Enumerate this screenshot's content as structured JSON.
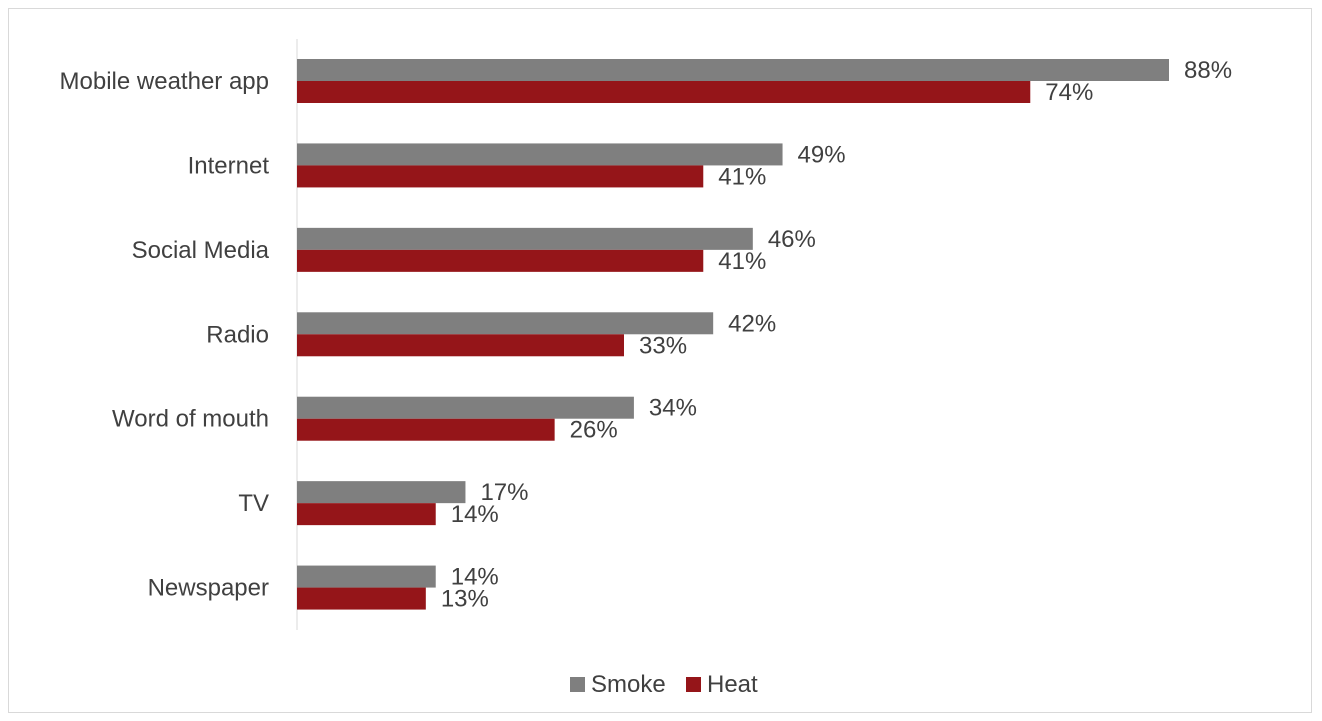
{
  "chart_data": {
    "type": "bar",
    "orientation": "horizontal",
    "categories": [
      "Mobile weather app",
      "Internet",
      "Social Media",
      "Radio",
      "Word of mouth",
      "TV",
      "Newspaper"
    ],
    "series": [
      {
        "name": "Smoke",
        "values": [
          88,
          49,
          46,
          42,
          34,
          17,
          14
        ],
        "labels": [
          "88%",
          "49%",
          "46%",
          "42%",
          "34%",
          "17%",
          "14%"
        ],
        "color": "#7f7f7f"
      },
      {
        "name": "Heat",
        "values": [
          74,
          41,
          41,
          33,
          26,
          14,
          13
        ],
        "labels": [
          "74%",
          "41%",
          "41%",
          "33%",
          "26%",
          "14%",
          "13%"
        ],
        "color": "#951519"
      }
    ],
    "title": "",
    "xlabel": "",
    "ylabel": "",
    "xlim": [
      0,
      88
    ],
    "grid": false,
    "legend": "bottom"
  }
}
